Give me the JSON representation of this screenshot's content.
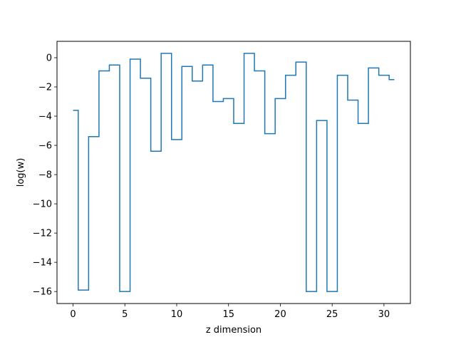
{
  "chart_data": {
    "type": "line",
    "drawstyle": "steps-mid",
    "xlabel": "z dimension",
    "ylabel": "log(w)",
    "xlim": [
      -1.55,
      32.55
    ],
    "ylim": [
      -16.82,
      1.12
    ],
    "xticks": [
      0,
      5,
      10,
      15,
      20,
      25,
      30
    ],
    "yticks": [
      0,
      -2,
      -4,
      -6,
      -8,
      -10,
      -12,
      -14,
      -16
    ],
    "x": [
      0,
      1,
      2,
      3,
      4,
      5,
      6,
      7,
      8,
      9,
      10,
      11,
      12,
      13,
      14,
      15,
      16,
      17,
      18,
      19,
      20,
      21,
      22,
      23,
      24,
      25,
      26,
      27,
      28,
      29,
      30,
      31
    ],
    "series": [
      {
        "values": [
          -3.6,
          -15.9,
          -5.4,
          -0.9,
          -0.5,
          -16.0,
          -0.1,
          -1.4,
          -6.4,
          0.3,
          -5.6,
          -0.6,
          -1.6,
          -0.5,
          -3.0,
          -2.8,
          -4.5,
          0.3,
          -0.9,
          -5.2,
          -2.8,
          -1.2,
          -0.3,
          -16.0,
          -4.3,
          -16.0,
          -1.2,
          -2.9,
          -4.5,
          -0.7,
          -1.2,
          -1.5
        ],
        "color": "#1f77b4"
      }
    ],
    "grid": false,
    "legend": "none"
  }
}
